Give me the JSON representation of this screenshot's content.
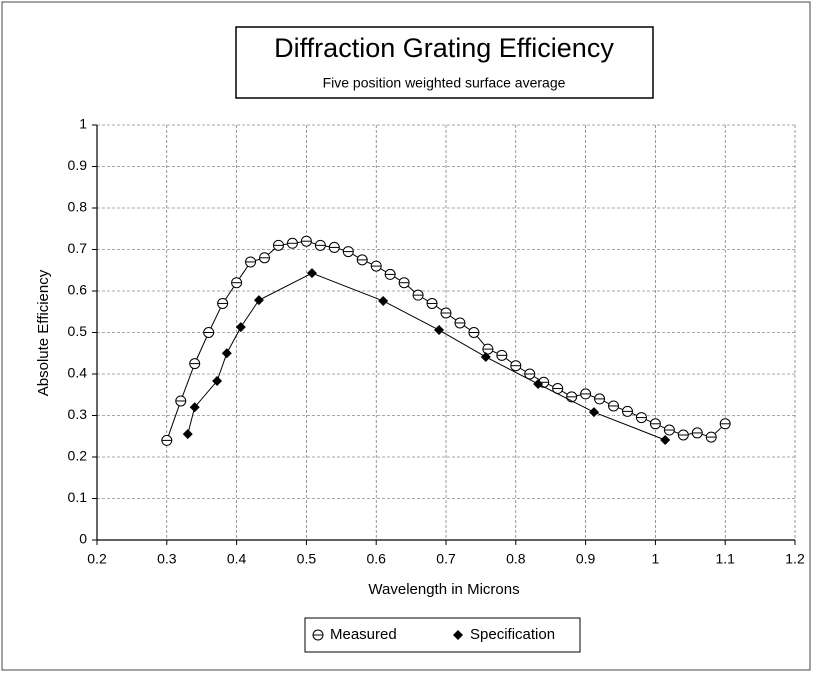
{
  "chart_data": {
    "type": "line",
    "title": "Diffraction Grating Efficiency",
    "subtitle": "Five position weighted surface average",
    "x_label": "Wavelength in Microns",
    "y_label": "Absolute Efficiency",
    "xlim": [
      0.2,
      1.2
    ],
    "xticks": [
      0.2,
      0.3,
      0.4,
      0.5,
      0.6,
      0.7,
      0.8,
      0.9,
      1,
      1.1,
      1.2
    ],
    "ylim": [
      0,
      1
    ],
    "yticks": [
      0,
      0.1,
      0.2,
      0.3,
      0.4,
      0.5,
      0.6,
      0.7,
      0.8,
      0.9,
      1
    ],
    "grid": true,
    "series": [
      {
        "name": "Measured",
        "color": "#000000",
        "marker": "circle",
        "x": [
          0.3,
          0.32,
          0.34,
          0.36,
          0.38,
          0.4,
          0.42,
          0.44,
          0.46,
          0.48,
          0.5,
          0.52,
          0.54,
          0.56,
          0.58,
          0.6,
          0.62,
          0.64,
          0.66,
          0.68,
          0.7,
          0.72,
          0.74,
          0.76,
          0.78,
          0.8,
          0.82,
          0.84,
          0.86,
          0.88,
          0.9,
          0.92,
          0.94,
          0.96,
          0.98,
          1.0,
          1.02,
          1.04,
          1.06,
          1.08,
          1.1
        ],
        "values": [
          0.24,
          0.335,
          0.425,
          0.5,
          0.57,
          0.62,
          0.67,
          0.68,
          0.71,
          0.715,
          0.72,
          0.71,
          0.705,
          0.695,
          0.675,
          0.66,
          0.64,
          0.62,
          0.59,
          0.57,
          0.547,
          0.523,
          0.5,
          0.46,
          0.445,
          0.42,
          0.4,
          0.38,
          0.365,
          0.345,
          0.352,
          0.34,
          0.323,
          0.31,
          0.295,
          0.28,
          0.265,
          0.253,
          0.258,
          0.248,
          0.28
        ]
      },
      {
        "name": "Specification",
        "color": "#000000",
        "marker": "diamond",
        "x": [
          0.33,
          0.34,
          0.372,
          0.386,
          0.406,
          0.432,
          0.508,
          0.61,
          0.69,
          0.757,
          0.832,
          0.912,
          1.014
        ],
        "values": [
          0.255,
          0.32,
          0.383,
          0.45,
          0.513,
          0.578,
          0.643,
          0.576,
          0.506,
          0.441,
          0.376,
          0.308,
          0.241
        ]
      }
    ]
  }
}
